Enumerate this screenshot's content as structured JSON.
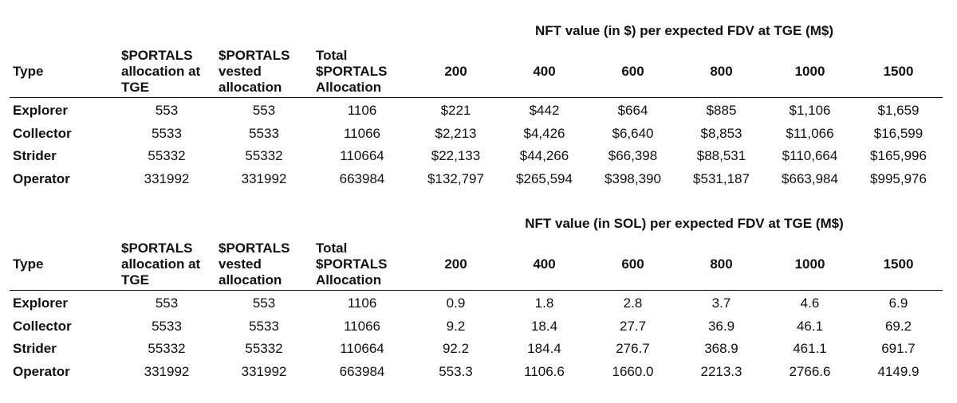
{
  "headers": {
    "type": "Type",
    "alloc_tge": [
      "$PORTALS",
      "allocation at",
      "TGE"
    ],
    "vested": [
      "$PORTALS",
      "vested",
      "allocation"
    ],
    "total": [
      "Total",
      "$PORTALS",
      "Allocation"
    ],
    "fdv": [
      "200",
      "400",
      "600",
      "800",
      "1000",
      "1500"
    ]
  },
  "usd_table": {
    "title": "NFT value (in $) per expected FDV at TGE (M$)",
    "rows": [
      {
        "type": "Explorer",
        "alloc": "553",
        "vested": "553",
        "total": "1106",
        "values": [
          "$221",
          "$442",
          "$664",
          "$885",
          "$1,106",
          "$1,659"
        ]
      },
      {
        "type": "Collector",
        "alloc": "5533",
        "vested": "5533",
        "total": "11066",
        "values": [
          "$2,213",
          "$4,426",
          "$6,640",
          "$8,853",
          "$11,066",
          "$16,599"
        ]
      },
      {
        "type": "Strider",
        "alloc": "55332",
        "vested": "55332",
        "total": "110664",
        "values": [
          "$22,133",
          "$44,266",
          "$66,398",
          "$88,531",
          "$110,664",
          "$165,996"
        ]
      },
      {
        "type": "Operator",
        "alloc": "331992",
        "vested": "331992",
        "total": "663984",
        "values": [
          "$132,797",
          "$265,594",
          "$398,390",
          "$531,187",
          "$663,984",
          "$995,976"
        ]
      }
    ]
  },
  "sol_table": {
    "title": "NFT value (in SOL) per expected FDV at TGE (M$)",
    "rows": [
      {
        "type": "Explorer",
        "alloc": "553",
        "vested": "553",
        "total": "1106",
        "values": [
          "0.9",
          "1.8",
          "2.8",
          "3.7",
          "4.6",
          "6.9"
        ]
      },
      {
        "type": "Collector",
        "alloc": "5533",
        "vested": "5533",
        "total": "11066",
        "values": [
          "9.2",
          "18.4",
          "27.7",
          "36.9",
          "46.1",
          "69.2"
        ]
      },
      {
        "type": "Strider",
        "alloc": "55332",
        "vested": "55332",
        "total": "110664",
        "values": [
          "92.2",
          "184.4",
          "276.7",
          "368.9",
          "461.1",
          "691.7"
        ]
      },
      {
        "type": "Operator",
        "alloc": "331992",
        "vested": "331992",
        "total": "663984",
        "values": [
          "553.3",
          "1106.6",
          "1660.0",
          "2213.3",
          "2766.6",
          "4149.9"
        ]
      }
    ]
  }
}
